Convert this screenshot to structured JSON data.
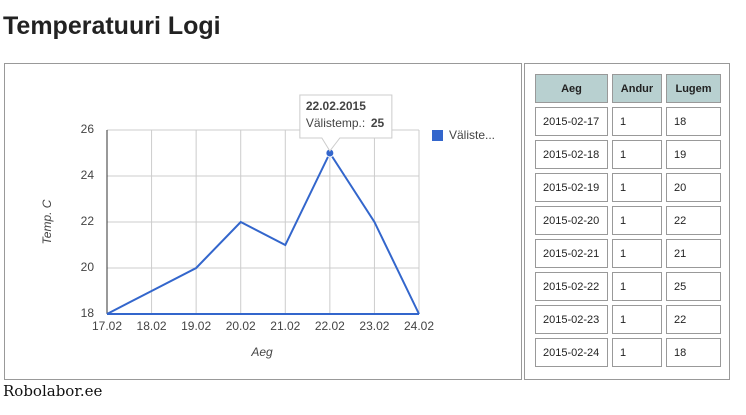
{
  "heading": "Temperatuuri Logi",
  "chart_data": {
    "type": "line",
    "categories": [
      "17.02",
      "18.02",
      "19.02",
      "20.02",
      "21.02",
      "22.02",
      "23.02",
      "24.02"
    ],
    "series": [
      {
        "name": "Välistemp.",
        "color": "#3366cc",
        "values": [
          18,
          19,
          20,
          22,
          21,
          25,
          22,
          18
        ]
      }
    ],
    "legend_label": "Väliste...",
    "x_label": "Aeg",
    "y_label": "Temp. C",
    "ylim": [
      18,
      26
    ],
    "yticks": [
      18,
      20,
      22,
      24,
      26
    ],
    "grid": true,
    "legend": "right",
    "tooltip": {
      "title": "22.02.2015",
      "label": "Välistemp.:"
    }
  },
  "table": {
    "columns": [
      "Aeg",
      "Andur",
      "Lugem"
    ],
    "rows": [
      [
        "2015-02-17",
        1,
        18
      ],
      [
        "2015-02-18",
        1,
        19
      ],
      [
        "2015-02-19",
        1,
        20
      ],
      [
        "2015-02-20",
        1,
        22
      ],
      [
        "2015-02-21",
        1,
        21
      ],
      [
        "2015-02-22",
        1,
        25
      ],
      [
        "2015-02-23",
        1,
        22
      ],
      [
        "2015-02-24",
        1,
        18
      ]
    ]
  },
  "footer": "Robolabor.ee"
}
